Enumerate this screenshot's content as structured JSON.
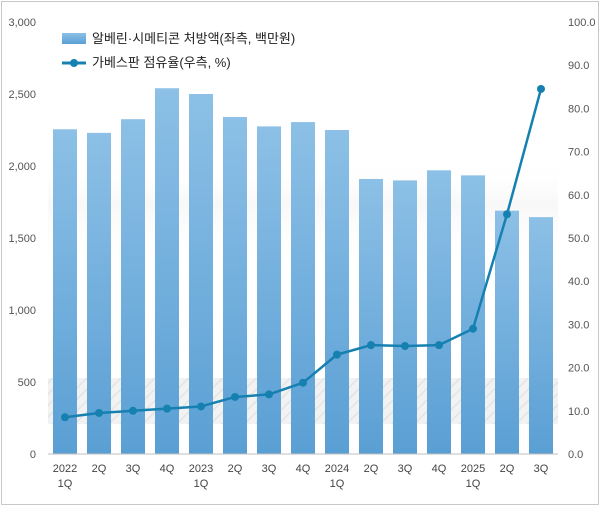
{
  "chart_data": {
    "type": "bar+line",
    "categories": [
      [
        "2022",
        "1Q"
      ],
      [
        "2Q"
      ],
      [
        "3Q"
      ],
      [
        "4Q"
      ],
      [
        "2023",
        "1Q"
      ],
      [
        "2Q"
      ],
      [
        "3Q"
      ],
      [
        "4Q"
      ],
      [
        "2024",
        "1Q"
      ],
      [
        "2Q"
      ],
      [
        "3Q"
      ],
      [
        "4Q"
      ],
      [
        "2025",
        "1Q"
      ],
      [
        "2Q"
      ],
      [
        "3Q"
      ]
    ],
    "series": [
      {
        "name": "알베린·시메티콘 처방액(좌측, 백만원)",
        "type": "bar",
        "axis": "left",
        "color": "#6aaad8",
        "values": [
          2255,
          2230,
          2325,
          2540,
          2500,
          2340,
          2275,
          2305,
          2250,
          1910,
          1900,
          1970,
          1935,
          1690,
          1645
        ]
      },
      {
        "name": "가베스판 점유율(우측, %)",
        "type": "line",
        "axis": "right",
        "color": "#1681b0",
        "values": [
          8.5,
          9.5,
          10.0,
          10.5,
          11.0,
          13.2,
          13.8,
          16.5,
          23.0,
          25.2,
          25.0,
          25.2,
          29.0,
          55.5,
          84.5
        ]
      }
    ],
    "y_left": {
      "ylim": [
        0,
        3000
      ],
      "ticks": [
        "0",
        "500",
        "1,000",
        "1,500",
        "2,000",
        "2,500",
        "3,000"
      ]
    },
    "y_right": {
      "ylim": [
        0,
        100
      ],
      "ticks": [
        "0.0",
        "10.0",
        "20.0",
        "30.0",
        "40.0",
        "50.0",
        "60.0",
        "70.0",
        "80.0",
        "90.0",
        "100.0"
      ]
    },
    "legend_position": "top-left",
    "grid": false,
    "title": "",
    "xlabel": "",
    "ylabel": ""
  }
}
